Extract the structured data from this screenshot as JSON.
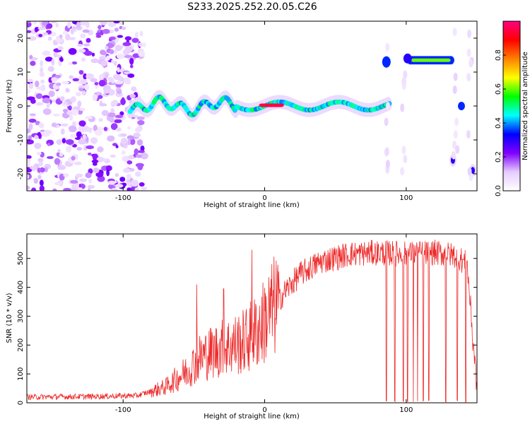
{
  "title": "S233.2025.252.20.05.C26",
  "chart_data": [
    {
      "type": "heatmap",
      "name": "spectrogram",
      "xlabel": "Height of straight line (km)",
      "ylabel": "Frequency (Hz)",
      "xlim": [
        -168,
        150
      ],
      "ylim": [
        -25,
        25
      ],
      "xticks": [
        -100,
        0,
        100
      ],
      "yticks": [
        -20,
        -10,
        0,
        10,
        20
      ],
      "grid": false,
      "colorbar": {
        "label": "Normalized spectral amplitude",
        "range": [
          0.0,
          1.0
        ],
        "ticks": [
          0.0,
          0.2,
          0.4,
          0.6,
          0.8
        ],
        "tick_labels": [
          "0.0",
          "0.2",
          "0.4",
          "0.6",
          "0.8"
        ],
        "colormap": [
          "#ffffff",
          "#e6ccff",
          "#8000ff",
          "#0000ff",
          "#00ffff",
          "#00ff00",
          "#ffff00",
          "#ff8000",
          "#ff0000",
          "#ff0080"
        ]
      },
      "features": [
        {
          "name": "noise field",
          "x_range": [
            -168,
            -85
          ],
          "y_range": [
            -25,
            25
          ],
          "amplitude": 0.15
        },
        {
          "name": "main tone",
          "x_range": [
            -95,
            88
          ],
          "frequency": 0,
          "amplitude": 0.45
        },
        {
          "name": "peak tone",
          "x_range": [
            -2,
            12
          ],
          "frequency": 0.2,
          "amplitude": 0.95
        },
        {
          "name": "high tone",
          "x_range": [
            105,
            130
          ],
          "frequency": 13.5,
          "amplitude": 0.6
        },
        {
          "name": "spot",
          "x": 133,
          "frequency": -16,
          "amplitude": 0.3
        },
        {
          "name": "spot",
          "x": 147,
          "frequency": -19,
          "amplitude": 0.3
        }
      ]
    },
    {
      "type": "line",
      "name": "snr",
      "xlabel": "Height of straight line (km)",
      "ylabel": "SNR (10 * v/v)",
      "xlim": [
        -168,
        150
      ],
      "ylim": [
        0,
        585
      ],
      "xticks": [
        -100,
        0,
        100
      ],
      "yticks": [
        0,
        100,
        200,
        300,
        400,
        500
      ],
      "color": "#ee2a2a",
      "grid": false,
      "trend": {
        "x": [
          -168,
          -120,
          -90,
          -70,
          -55,
          -45,
          -30,
          -15,
          -5,
          5,
          15,
          25,
          40,
          60,
          80,
          100,
          120,
          135,
          143,
          150
        ],
        "y": [
          20,
          22,
          25,
          55,
          110,
          160,
          190,
          210,
          250,
          320,
          390,
          445,
          490,
          515,
          520,
          515,
          520,
          510,
          480,
          50
        ]
      },
      "spikes": [
        {
          "x": -48,
          "y": 410
        },
        {
          "x": -29,
          "y": 395
        },
        {
          "x": -9,
          "y": 530
        },
        {
          "x": 147,
          "y": 180
        }
      ],
      "dropouts_x": [
        86,
        92,
        98,
        101,
        105,
        108,
        112,
        116,
        128,
        136,
        142
      ]
    }
  ]
}
